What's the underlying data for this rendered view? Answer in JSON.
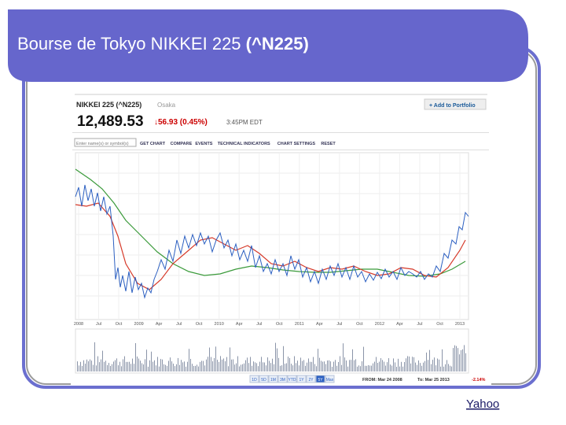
{
  "slide": {
    "title": "Bourse de Tokyo NIKKEI 225",
    "title_bold": "(^N225)",
    "link": "Yahoo"
  },
  "screenshot": {
    "name": "NIKKEI 225 (^N225)",
    "exchange": "Osaka",
    "portfolio_button": "Add to Portfolio",
    "price": "12,489.53",
    "change": "56.93 (0.45%)",
    "time": "3:45PM EDT",
    "search_placeholder": "Enter name(s) or symbol(s)",
    "toolbar": [
      "GET CHART",
      "COMPARE",
      "EVENTS",
      "TECHNICAL INDICATORS",
      "CHART SETTINGS",
      "RESET"
    ],
    "x_labels": [
      "2008",
      "Jul",
      "Oct",
      "2009",
      "Apr",
      "Jul",
      "Oct",
      "2010",
      "Apr",
      "Jul",
      "Oct",
      "2011",
      "Apr",
      "Jul",
      "Oct",
      "2012",
      "Apr",
      "Jul",
      "Oct",
      "2013"
    ],
    "ranges": [
      "1D",
      "5D",
      "1M",
      "3M",
      "YTD",
      "1Y",
      "2Y",
      "5Y",
      "Max"
    ],
    "from": "FROM: Mar 24 2008",
    "to": "To: Mar 25 2013",
    "pct": "-2.14%"
  }
}
